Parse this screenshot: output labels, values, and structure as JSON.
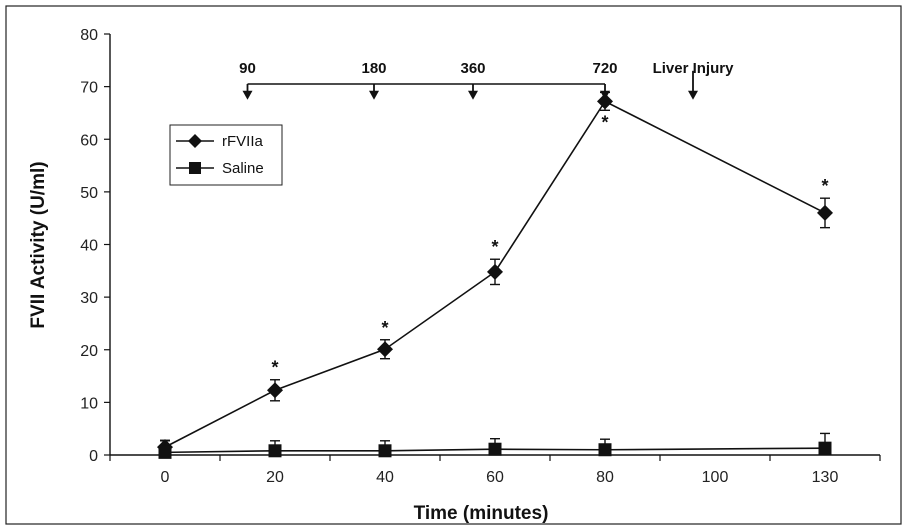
{
  "chart_data": {
    "type": "line",
    "xlabel": "Time (minutes)",
    "ylabel": "FVII Activity (U/ml)",
    "ylim": [
      0,
      80
    ],
    "yticks": [
      0,
      10,
      20,
      30,
      40,
      50,
      60,
      70,
      80
    ],
    "categories": [
      "0",
      "20",
      "40",
      "60",
      "80",
      "100",
      "130"
    ],
    "series": [
      {
        "name": "rFVIIa",
        "marker": "diamond",
        "color": "#111111",
        "x": [
          "0",
          "20",
          "40",
          "60",
          "80",
          "130"
        ],
        "values": [
          1.5,
          12.3,
          20.1,
          34.8,
          67.2,
          46.0
        ],
        "errors": [
          1.2,
          2.0,
          1.8,
          2.4,
          1.7,
          2.8
        ],
        "significant": [
          false,
          true,
          true,
          true,
          true,
          true
        ]
      },
      {
        "name": "Saline",
        "marker": "square",
        "color": "#111111",
        "x": [
          "0",
          "20",
          "40",
          "60",
          "80",
          "130"
        ],
        "values": [
          0.5,
          0.8,
          0.8,
          1.1,
          1.0,
          1.3
        ],
        "errors": [
          2.3,
          1.9,
          1.9,
          2.0,
          2.0,
          2.8
        ]
      }
    ],
    "doses": {
      "labels": [
        "90",
        "180",
        "360",
        "720"
      ],
      "times": [
        15,
        38,
        56,
        80
      ],
      "bracket_y": 70.5
    },
    "injury": {
      "label": "Liver Injury",
      "time": 96
    },
    "significance_marker": "*",
    "legend": {
      "placement": "upper-left"
    },
    "grid": false
  }
}
